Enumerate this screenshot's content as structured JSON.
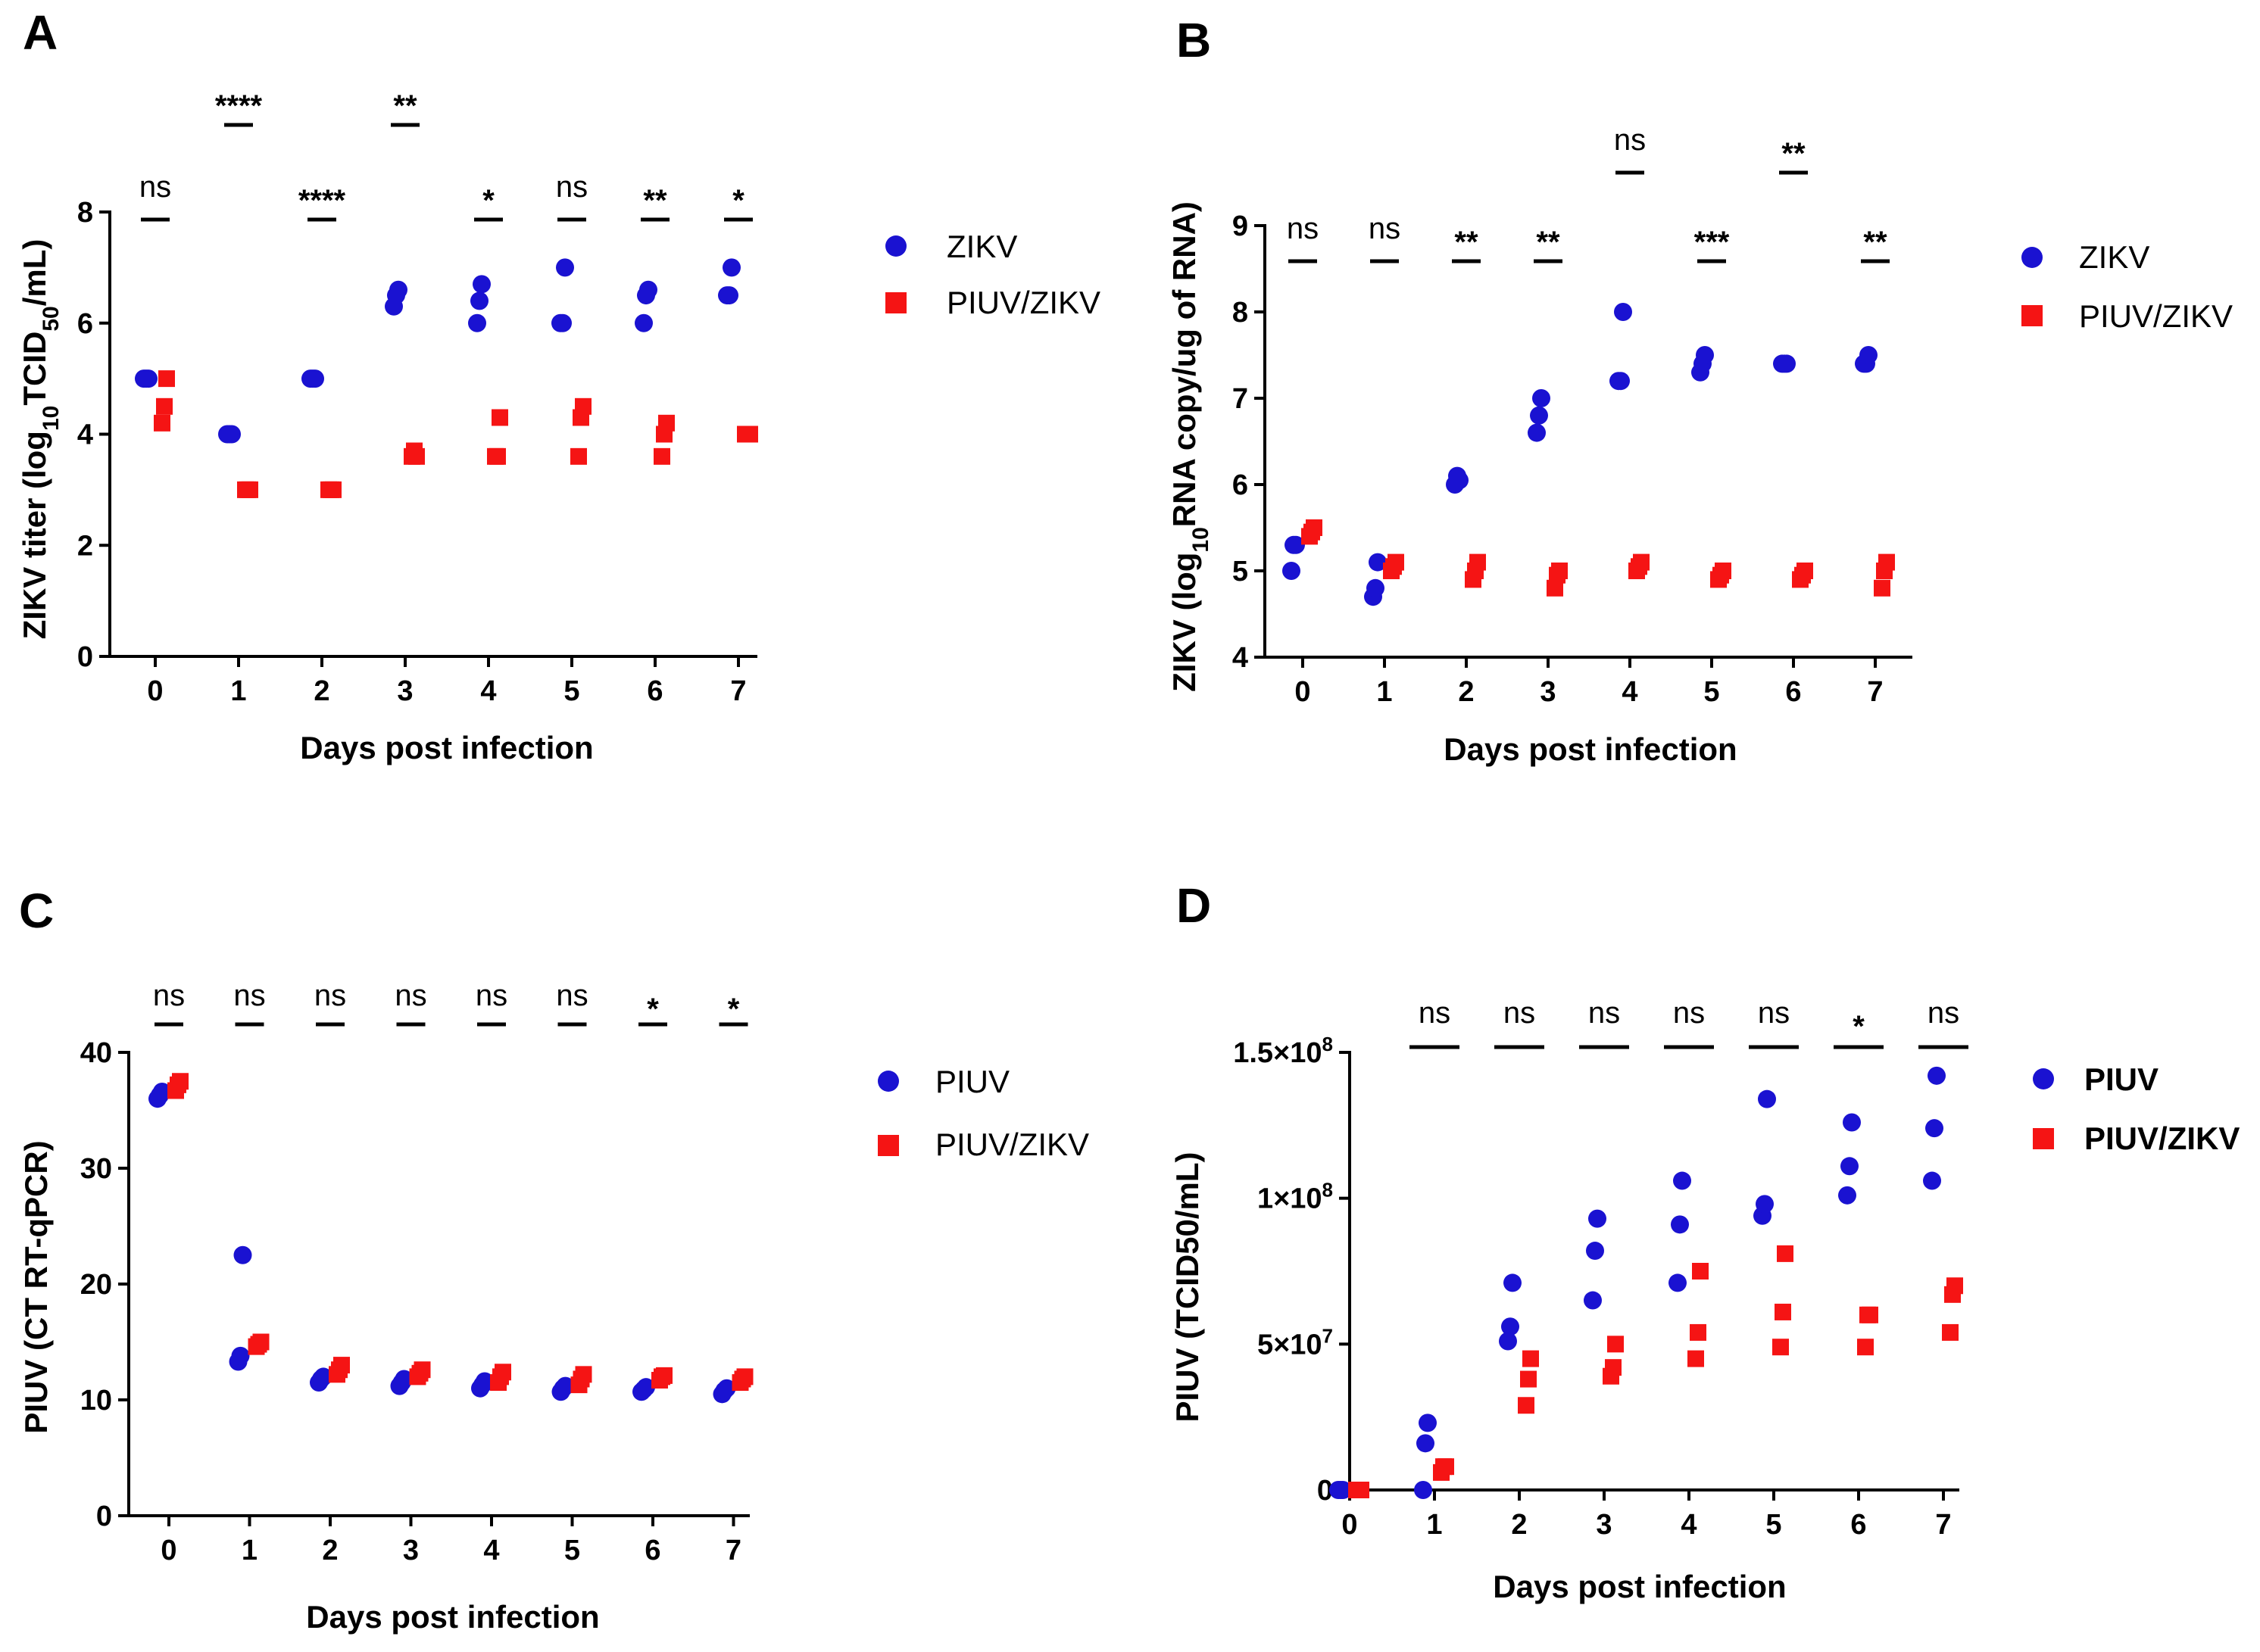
{
  "colors": {
    "zikv": "#1a12d1",
    "piuv_zikv": "#f51414",
    "piuv": "#1a12d1"
  },
  "chart_data": [
    {
      "panel": "A",
      "type": "scatter",
      "xlabel": "Days post infection",
      "ylabel_main": "ZIKV titer (log",
      "ylabel_sub1": "10",
      "ylabel_mid": "TCID",
      "ylabel_sub2": "50",
      "ylabel_end": "/mL)",
      "x_ticks": [
        "0",
        "1",
        "2",
        "3",
        "4",
        "5",
        "6",
        "7"
      ],
      "y_ticks": [
        "0",
        "2",
        "4",
        "6",
        "8"
      ],
      "ylim": [
        0,
        8
      ],
      "series": [
        {
          "name": "ZIKV",
          "marker": "circle",
          "color_key": "zikv",
          "points": [
            [
              0,
              5
            ],
            [
              0,
              5
            ],
            [
              0,
              5
            ],
            [
              1,
              4
            ],
            [
              1,
              4
            ],
            [
              1,
              4
            ],
            [
              2,
              5
            ],
            [
              2,
              5
            ],
            [
              2,
              5
            ],
            [
              3,
              6.3
            ],
            [
              3,
              6.5
            ],
            [
              3,
              6.6
            ],
            [
              4,
              6
            ],
            [
              4,
              6.4
            ],
            [
              4,
              6.7
            ],
            [
              5,
              6
            ],
            [
              5,
              6
            ],
            [
              5,
              7
            ],
            [
              6,
              6
            ],
            [
              6,
              6.5
            ],
            [
              6,
              6.6
            ],
            [
              7,
              6.5
            ],
            [
              7,
              6.5
            ],
            [
              7,
              7
            ]
          ]
        },
        {
          "name": "PIUV/ZIKV",
          "marker": "square",
          "color_key": "piuv_zikv",
          "points": [
            [
              0,
              4.2
            ],
            [
              0,
              4.5
            ],
            [
              0,
              5
            ],
            [
              1,
              3
            ],
            [
              1,
              3
            ],
            [
              1,
              3
            ],
            [
              2,
              3
            ],
            [
              2,
              3
            ],
            [
              2,
              3
            ],
            [
              3,
              3.6
            ],
            [
              3,
              3.7
            ],
            [
              3,
              3.6
            ],
            [
              4,
              3.6
            ],
            [
              4,
              3.6
            ],
            [
              4,
              4.3
            ],
            [
              5,
              3.6
            ],
            [
              5,
              4.3
            ],
            [
              5,
              4.5
            ],
            [
              6,
              3.6
            ],
            [
              6,
              4
            ],
            [
              6,
              4.2
            ],
            [
              7,
              4
            ],
            [
              7,
              4
            ],
            [
              7,
              4
            ]
          ]
        }
      ],
      "significance": [
        {
          "day": 0,
          "label": "ns",
          "level": "low"
        },
        {
          "day": 1,
          "label": "****",
          "level": "high"
        },
        {
          "day": 2,
          "label": "****",
          "level": "low"
        },
        {
          "day": 3,
          "label": "**",
          "level": "high"
        },
        {
          "day": 4,
          "label": "*",
          "level": "low"
        },
        {
          "day": 5,
          "label": "ns",
          "level": "low"
        },
        {
          "day": 6,
          "label": "**",
          "level": "low"
        },
        {
          "day": 7,
          "label": "*",
          "level": "low"
        }
      ]
    },
    {
      "panel": "B",
      "type": "scatter",
      "xlabel": "Days post infection",
      "ylabel_main": "ZIKV (log",
      "ylabel_sub1": "10",
      "ylabel_end": "RNA copy/ug of RNA)",
      "x_ticks": [
        "0",
        "1",
        "2",
        "3",
        "4",
        "5",
        "6",
        "7"
      ],
      "y_ticks": [
        "4",
        "5",
        "6",
        "7",
        "8",
        "9"
      ],
      "ylim": [
        4,
        9
      ],
      "series": [
        {
          "name": "ZIKV",
          "marker": "circle",
          "color_key": "zikv",
          "points": [
            [
              0,
              5
            ],
            [
              0,
              5.3
            ],
            [
              0,
              5.3
            ],
            [
              1,
              4.7
            ],
            [
              1,
              4.8
            ],
            [
              1,
              5.1
            ],
            [
              2,
              6
            ],
            [
              2,
              6.1
            ],
            [
              2,
              6.05
            ],
            [
              3,
              6.6
            ],
            [
              3,
              6.8
            ],
            [
              3,
              7
            ],
            [
              4,
              7.2
            ],
            [
              4,
              7.2
            ],
            [
              4,
              8
            ],
            [
              5,
              7.3
            ],
            [
              5,
              7.4
            ],
            [
              5,
              7.5
            ],
            [
              6,
              7.4
            ],
            [
              6,
              7.4
            ],
            [
              6,
              7.4
            ],
            [
              7,
              7.4
            ],
            [
              7,
              7.4
            ],
            [
              7,
              7.5
            ]
          ]
        },
        {
          "name": "PIUV/ZIKV",
          "marker": "square",
          "color_key": "piuv_zikv",
          "points": [
            [
              0,
              5.4
            ],
            [
              0,
              5.45
            ],
            [
              0,
              5.5
            ],
            [
              1,
              5
            ],
            [
              1,
              5.05
            ],
            [
              1,
              5.1
            ],
            [
              2,
              4.9
            ],
            [
              2,
              5
            ],
            [
              2,
              5.1
            ],
            [
              3,
              4.8
            ],
            [
              3,
              4.95
            ],
            [
              3,
              5
            ],
            [
              4,
              5
            ],
            [
              4,
              5.05
            ],
            [
              4,
              5.1
            ],
            [
              5,
              4.9
            ],
            [
              5,
              4.95
            ],
            [
              5,
              5
            ],
            [
              6,
              4.9
            ],
            [
              6,
              4.95
            ],
            [
              6,
              5
            ],
            [
              7,
              4.8
            ],
            [
              7,
              5
            ],
            [
              7,
              5.1
            ]
          ]
        }
      ],
      "significance": [
        {
          "day": 0,
          "label": "ns",
          "level": "low"
        },
        {
          "day": 1,
          "label": "ns",
          "level": "low"
        },
        {
          "day": 2,
          "label": "**",
          "level": "low"
        },
        {
          "day": 3,
          "label": "**",
          "level": "low"
        },
        {
          "day": 4,
          "label": "ns",
          "level": "high"
        },
        {
          "day": 5,
          "label": "***",
          "level": "low"
        },
        {
          "day": 6,
          "label": "**",
          "level": "high"
        },
        {
          "day": 7,
          "label": "**",
          "level": "low"
        }
      ]
    },
    {
      "panel": "C",
      "type": "scatter",
      "xlabel": "Days post infection",
      "ylabel": "PIUV (CT RT-qPCR)",
      "x_ticks": [
        "0",
        "1",
        "2",
        "3",
        "4",
        "5",
        "6",
        "7"
      ],
      "y_ticks": [
        "0",
        "10",
        "20",
        "30",
        "40"
      ],
      "ylim": [
        0,
        40
      ],
      "series": [
        {
          "name": "PIUV",
          "marker": "circle",
          "color_key": "piuv",
          "points": [
            [
              0,
              36
            ],
            [
              0,
              36.3
            ],
            [
              0,
              36.6
            ],
            [
              1,
              13.3
            ],
            [
              1,
              13.8
            ],
            [
              1,
              22.5
            ],
            [
              2,
              11.5
            ],
            [
              2,
              11.8
            ],
            [
              2,
              12
            ],
            [
              3,
              11.2
            ],
            [
              3,
              11.5
            ],
            [
              3,
              11.8
            ],
            [
              4,
              11
            ],
            [
              4,
              11.3
            ],
            [
              4,
              11.6
            ],
            [
              5,
              10.7
            ],
            [
              5,
              11
            ],
            [
              5,
              11.2
            ],
            [
              6,
              10.7
            ],
            [
              6,
              10.9
            ],
            [
              6,
              11.1
            ],
            [
              7,
              10.5
            ],
            [
              7,
              10.8
            ],
            [
              7,
              11
            ]
          ]
        },
        {
          "name": "PIUV/ZIKV",
          "marker": "square",
          "color_key": "piuv_zikv",
          "points": [
            [
              0,
              36.7
            ],
            [
              0,
              37.2
            ],
            [
              0,
              37.5
            ],
            [
              1,
              14.6
            ],
            [
              1,
              14.8
            ],
            [
              1,
              15
            ],
            [
              2,
              12.2
            ],
            [
              2,
              12.6
            ],
            [
              2,
              13
            ],
            [
              3,
              12
            ],
            [
              3,
              12.3
            ],
            [
              3,
              12.6
            ],
            [
              4,
              11.5
            ],
            [
              4,
              12
            ],
            [
              4,
              12.4
            ],
            [
              5,
              11.3
            ],
            [
              5,
              11.8
            ],
            [
              5,
              12.2
            ],
            [
              6,
              11.7
            ],
            [
              6,
              12
            ],
            [
              6,
              12.1
            ],
            [
              7,
              11.5
            ],
            [
              7,
              11.8
            ],
            [
              7,
              12
            ]
          ]
        }
      ],
      "significance": [
        {
          "day": 0,
          "label": "ns",
          "level": "low"
        },
        {
          "day": 1,
          "label": "ns",
          "level": "low"
        },
        {
          "day": 2,
          "label": "ns",
          "level": "low"
        },
        {
          "day": 3,
          "label": "ns",
          "level": "low"
        },
        {
          "day": 4,
          "label": "ns",
          "level": "low"
        },
        {
          "day": 5,
          "label": "ns",
          "level": "low"
        },
        {
          "day": 6,
          "label": "*",
          "level": "low"
        },
        {
          "day": 7,
          "label": "*",
          "level": "low"
        }
      ]
    },
    {
      "panel": "D",
      "type": "scatter",
      "xlabel": "Days post infection",
      "ylabel": "PIUV (TCID50/mL)",
      "x_ticks": [
        "0",
        "1",
        "2",
        "3",
        "4",
        "5",
        "6",
        "7"
      ],
      "y_ticks_values": [
        0,
        50000000,
        100000000,
        150000000
      ],
      "y_tick_labels": [
        "0",
        "5×10",
        "1×10",
        "1.5×10"
      ],
      "y_tick_exps": [
        "",
        "7",
        "8",
        "8"
      ],
      "ylim": [
        0,
        150000000
      ],
      "series": [
        {
          "name": "PIUV",
          "marker": "circle",
          "color_key": "piuv",
          "points": [
            [
              0,
              0
            ],
            [
              0,
              0
            ],
            [
              0,
              0
            ],
            [
              1,
              0
            ],
            [
              1,
              16000000
            ],
            [
              1,
              23000000
            ],
            [
              2,
              51000000
            ],
            [
              2,
              56000000
            ],
            [
              2,
              71000000
            ],
            [
              3,
              65000000
            ],
            [
              3,
              82000000
            ],
            [
              3,
              93000000
            ],
            [
              4,
              71000000
            ],
            [
              4,
              91000000
            ],
            [
              4,
              106000000
            ],
            [
              5,
              94000000
            ],
            [
              5,
              98000000
            ],
            [
              5,
              134000000
            ],
            [
              6,
              101000000
            ],
            [
              6,
              111000000
            ],
            [
              6,
              126000000
            ],
            [
              7,
              106000000
            ],
            [
              7,
              124000000
            ],
            [
              7,
              142000000
            ]
          ]
        },
        {
          "name": "PIUV/ZIKV",
          "marker": "square",
          "color_key": "piuv_zikv",
          "points": [
            [
              0,
              0
            ],
            [
              0,
              0
            ],
            [
              0,
              0
            ],
            [
              1,
              6000000
            ],
            [
              1,
              8000000
            ],
            [
              1,
              8000000
            ],
            [
              2,
              29000000
            ],
            [
              2,
              38000000
            ],
            [
              2,
              45000000
            ],
            [
              3,
              39000000
            ],
            [
              3,
              42000000
            ],
            [
              3,
              50000000
            ],
            [
              4,
              45000000
            ],
            [
              4,
              54000000
            ],
            [
              4,
              75000000
            ],
            [
              5,
              49000000
            ],
            [
              5,
              61000000
            ],
            [
              5,
              81000000
            ],
            [
              6,
              49000000
            ],
            [
              6,
              60000000
            ],
            [
              6,
              60000000
            ],
            [
              7,
              54000000
            ],
            [
              7,
              67000000
            ],
            [
              7,
              70000000
            ]
          ]
        }
      ],
      "significance": [
        {
          "day": 1,
          "label": "ns",
          "level": "low"
        },
        {
          "day": 2,
          "label": "ns",
          "level": "low"
        },
        {
          "day": 3,
          "label": "ns",
          "level": "low"
        },
        {
          "day": 4,
          "label": "ns",
          "level": "low"
        },
        {
          "day": 5,
          "label": "ns",
          "level": "low"
        },
        {
          "day": 6,
          "label": "*",
          "level": "low"
        },
        {
          "day": 7,
          "label": "ns",
          "level": "low"
        }
      ]
    }
  ]
}
